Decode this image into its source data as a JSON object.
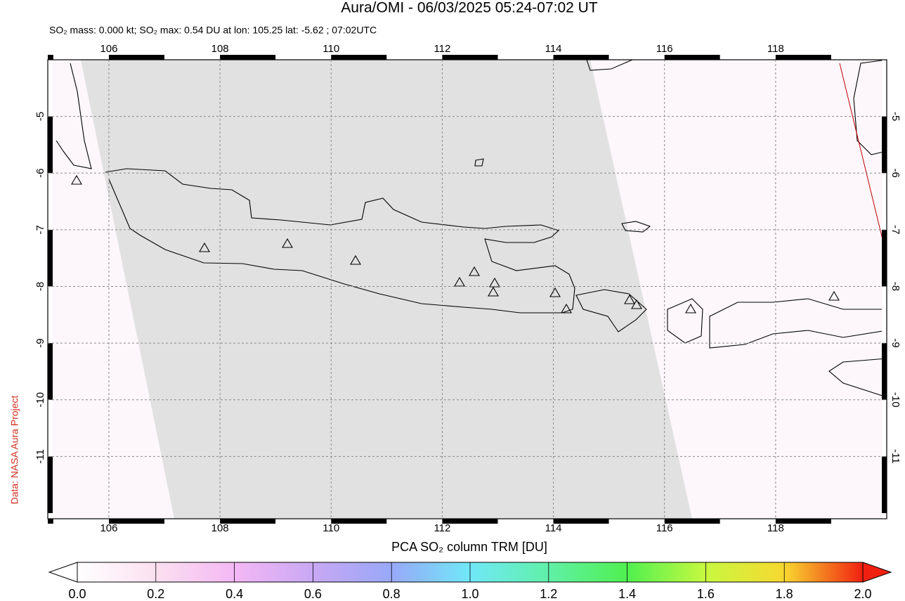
{
  "map": {
    "title": "Aura/OMI - 06/03/2025 05:24-07:02 UT",
    "subtitle": "SO₂ mass: 0.000 kt; SO₂ max: 0.54 DU at lon: 105.25 lat: -5.62 ; 07:02UTC",
    "credit": "Data: NASA Aura Project",
    "xlim": [
      104.9,
      120
    ],
    "ylim": [
      -12.1,
      -4
    ],
    "xticks": [
      106,
      108,
      110,
      112,
      114,
      116,
      118
    ],
    "yticks": [
      -5,
      -6,
      -7,
      -8,
      -9,
      -10,
      -11
    ],
    "grid": true,
    "colorbar": {
      "label": "PCA SO₂ column TRM [DU]",
      "lim": [
        0,
        2
      ],
      "ticks": [
        {
          "value": 0,
          "label": "0.0"
        },
        {
          "value": 0.2,
          "label": "0.2"
        },
        {
          "value": 0.4,
          "label": "0.4"
        },
        {
          "value": 0.6,
          "label": "0.6"
        },
        {
          "value": 0.8,
          "label": "0.8"
        },
        {
          "value": 1,
          "label": "1.0"
        },
        {
          "value": 1.2,
          "label": "1.2"
        },
        {
          "value": 1.4,
          "label": "1.4"
        },
        {
          "value": 1.6,
          "label": "1.6"
        },
        {
          "value": 1.8,
          "label": "1.8"
        },
        {
          "value": 2,
          "label": "2.0"
        }
      ],
      "colors": [
        "#ffffff",
        "#fbe0f0",
        "#f4b8f4",
        "#c8a8f4",
        "#98a8f8",
        "#70e8f8",
        "#60f0a8",
        "#50f050",
        "#c8f840",
        "#f8d830",
        "#f02010"
      ]
    }
  }
}
